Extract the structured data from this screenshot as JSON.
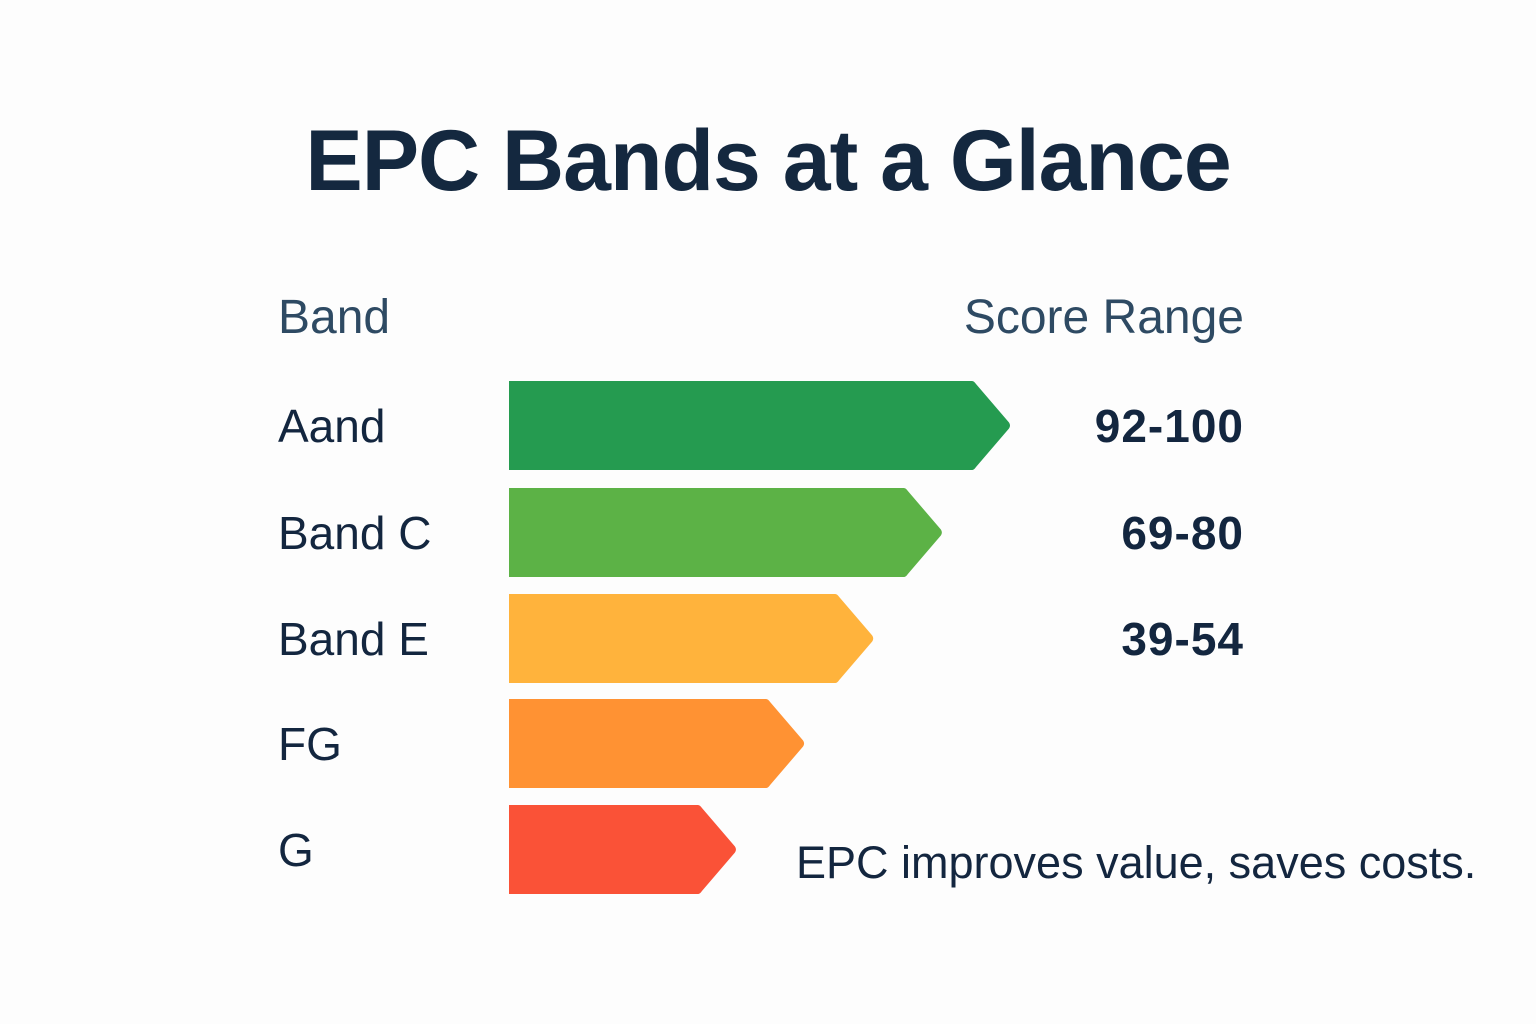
{
  "chart_data": {
    "type": "bar",
    "orientation": "horizontal",
    "title": "EPC Bands at a Glance",
    "column_headers": {
      "band": "Band",
      "score": "Score Range"
    },
    "categories": [
      "Aand",
      "Band C",
      "Band E",
      "FG",
      "G"
    ],
    "score_ranges": [
      "92-100",
      "69-80",
      "39-54",
      "",
      ""
    ],
    "relative_length": [
      1.0,
      0.864,
      0.727,
      0.589,
      0.453
    ],
    "colors": [
      "#259b50",
      "#5cb246",
      "#ffb33c",
      "#ff9233",
      "#fa5237"
    ],
    "annotation": "EPC improves value, saves costs."
  }
}
